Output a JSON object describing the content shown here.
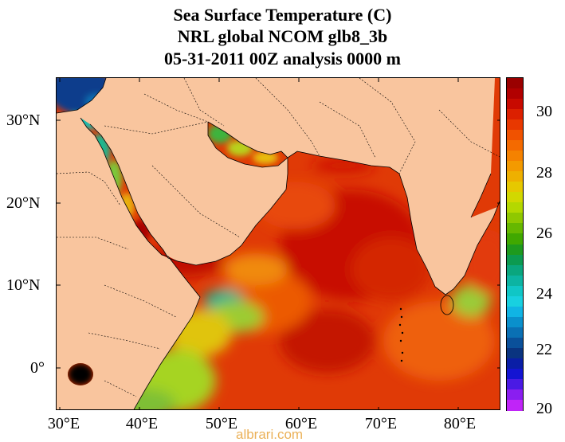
{
  "title": {
    "line1": "Sea Surface Temperature (C)",
    "line2": "NRL global NCOM glb8_3b",
    "line3": "05-31-2011 00Z analysis   0000 m"
  },
  "map": {
    "region": "Arabian Sea / Red Sea / Persian Gulf",
    "lon_range": [
      29.5,
      85.5
    ],
    "lat_range": [
      -5,
      35
    ],
    "land_color": "#f9c59e",
    "x_ticks": [
      "30°E",
      "40°E",
      "50°E",
      "60°E",
      "70°E",
      "80°E"
    ],
    "y_ticks": [
      "30°N",
      "20°N",
      "10°N",
      "0°"
    ]
  },
  "colorbar": {
    "min": 20,
    "max": 31,
    "labels": [
      "30",
      "28",
      "26",
      "24",
      "22",
      "20"
    ],
    "colors": [
      "#9a0000",
      "#b10000",
      "#c80a00",
      "#dc2000",
      "#e83800",
      "#f05200",
      "#f46a00",
      "#f58200",
      "#f39a00",
      "#eeb000",
      "#e6c800",
      "#d2d800",
      "#b4d800",
      "#8fc800",
      "#66b800",
      "#40a800",
      "#1e9a1e",
      "#0c9a50",
      "#0aa67e",
      "#0cb4a2",
      "#10c6c6",
      "#18d0e0",
      "#10b4e4",
      "#0a90cc",
      "#0a70b4",
      "#0a509a",
      "#0a3480",
      "#0a1ea6",
      "#1414d2",
      "#4a1ae4",
      "#8a1ef0",
      "#c024f8"
    ]
  },
  "watermark": "albrari.com"
}
